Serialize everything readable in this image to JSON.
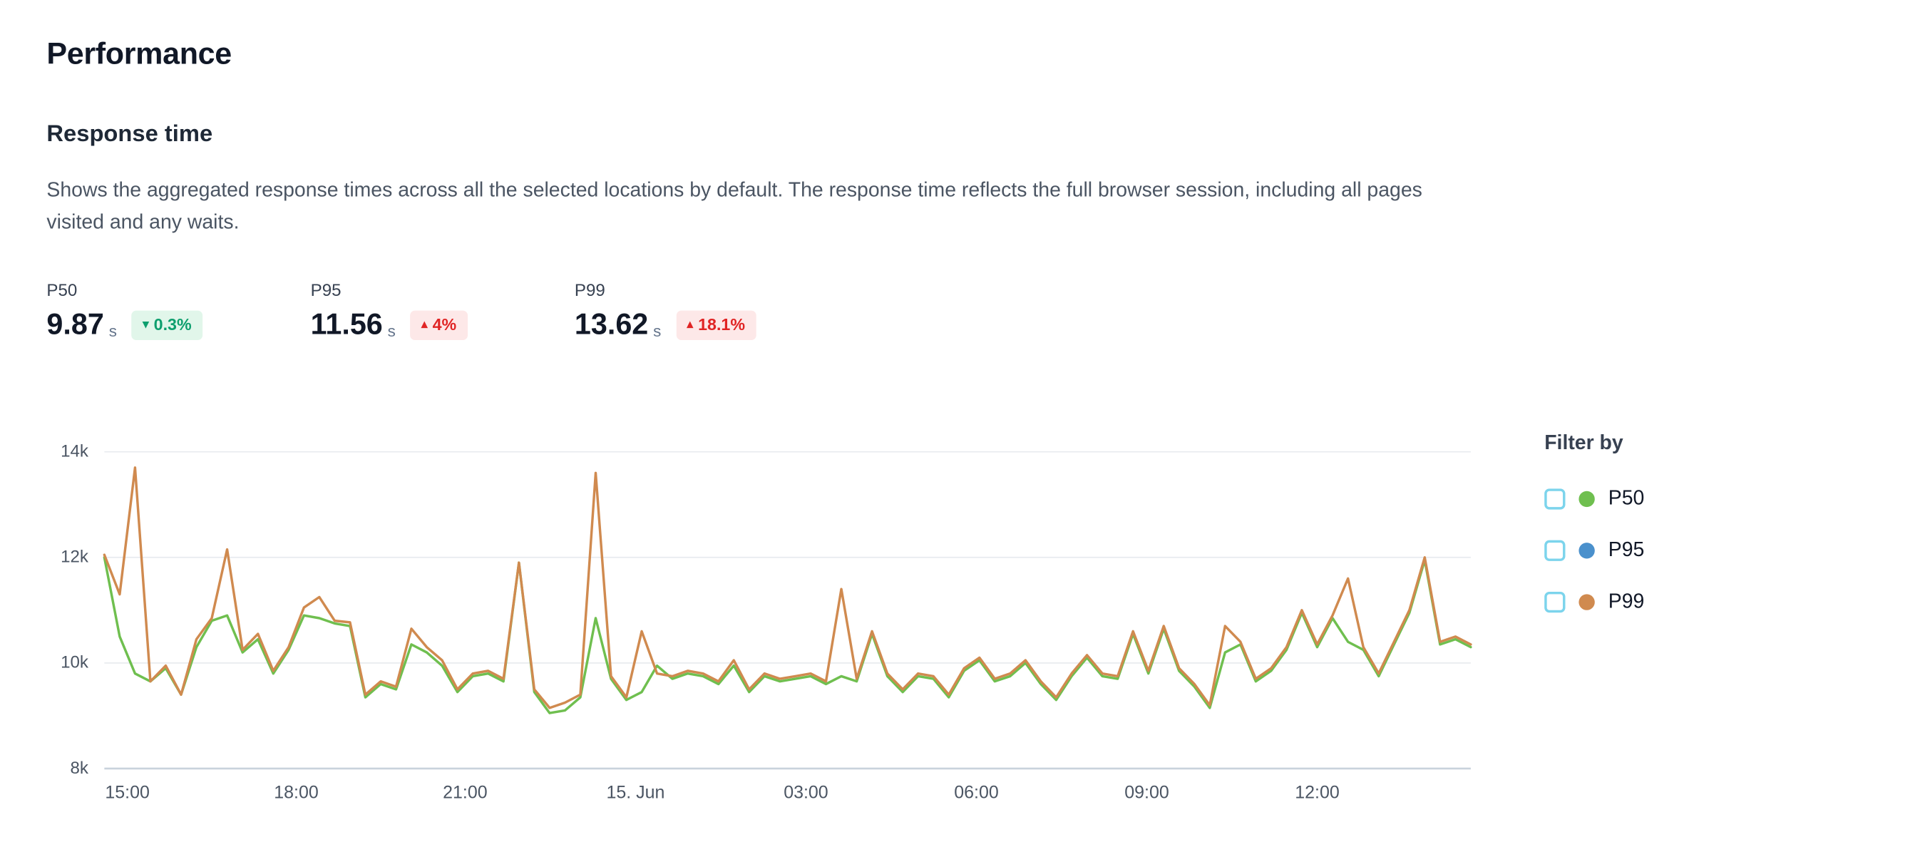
{
  "page": {
    "title": "Performance"
  },
  "section": {
    "title": "Response time",
    "description": "Shows the aggregated response times across all the selected locations by default. The response time reflects the full browser session, including all pages visited and any waits."
  },
  "stats": [
    {
      "label": "P50",
      "value": "9.87",
      "unit": "s",
      "arrow": "▾",
      "delta": "0.3%",
      "tone": "positive"
    },
    {
      "label": "P95",
      "value": "11.56",
      "unit": "s",
      "arrow": "▴",
      "delta": "4%",
      "tone": "negative"
    },
    {
      "label": "P99",
      "value": "13.62",
      "unit": "s",
      "arrow": "▴",
      "delta": "18.1%",
      "tone": "negative"
    }
  ],
  "filter": {
    "title": "Filter by",
    "items": [
      {
        "label": "P50",
        "color": "#6fbf4f",
        "checked": false
      },
      {
        "label": "P95",
        "color": "#4a90cc",
        "checked": false
      },
      {
        "label": "P99",
        "color": "#d08a4f",
        "checked": false
      }
    ]
  },
  "chart_data": {
    "type": "line",
    "title": "Response time",
    "ylim": [
      8000,
      14000
    ],
    "grid": "horizontal",
    "legend_position": "right",
    "y_ticks": [
      {
        "value": 14000,
        "label": "14k"
      },
      {
        "value": 12000,
        "label": "12k"
      },
      {
        "value": 10000,
        "label": "10k"
      },
      {
        "value": 8000,
        "label": "8k"
      }
    ],
    "x_ticks": [
      {
        "index": 1.5,
        "label": "15:00"
      },
      {
        "index": 12.5,
        "label": "18:00"
      },
      {
        "index": 23.5,
        "label": "21:00"
      },
      {
        "index": 34.6,
        "label": "15. Jun"
      },
      {
        "index": 45.7,
        "label": "03:00"
      },
      {
        "index": 56.8,
        "label": "06:00"
      },
      {
        "index": 67.9,
        "label": "09:00"
      },
      {
        "index": 79.0,
        "label": "12:00"
      }
    ],
    "series": [
      {
        "name": "P50",
        "color": "#6fbf4f",
        "visible": true,
        "values": [
          12000,
          10500,
          9800,
          9650,
          9900,
          9400,
          10300,
          10800,
          10900,
          10200,
          10450,
          9800,
          10250,
          10900,
          10850,
          10750,
          10700,
          9350,
          9600,
          9500,
          10350,
          10200,
          9950,
          9450,
          9750,
          9800,
          9650,
          11900,
          9450,
          9050,
          9100,
          9350,
          10850,
          9700,
          9300,
          9450,
          9950,
          9700,
          9800,
          9750,
          9600,
          9950,
          9450,
          9750,
          9650,
          9700,
          9750,
          9600,
          9750,
          9650,
          10550,
          9750,
          9450,
          9750,
          9700,
          9350,
          9850,
          10050,
          9650,
          9750,
          10000,
          9600,
          9300,
          9750,
          10100,
          9750,
          9700,
          10550,
          9800,
          10650,
          9850,
          9550,
          9150,
          10200,
          10350,
          9650,
          9850,
          10250,
          10950,
          10300,
          10850,
          10400,
          10250,
          9750,
          10350,
          10950,
          11950,
          10350,
          10450,
          10300
        ]
      },
      {
        "name": "P95",
        "color": "#4a90cc",
        "visible": false,
        "values": []
      },
      {
        "name": "P99",
        "color": "#d08a4f",
        "visible": true,
        "values": [
          12050,
          11300,
          13700,
          9650,
          9950,
          9400,
          10450,
          10850,
          12150,
          10250,
          10550,
          9850,
          10300,
          11050,
          11250,
          10800,
          10770,
          9400,
          9650,
          9550,
          10650,
          10300,
          10050,
          9500,
          9800,
          9850,
          9700,
          11900,
          9500,
          9150,
          9250,
          9400,
          13600,
          9750,
          9350,
          10600,
          9800,
          9750,
          9850,
          9800,
          9650,
          10050,
          9500,
          9800,
          9700,
          9750,
          9800,
          9650,
          11400,
          9700,
          10600,
          9800,
          9500,
          9800,
          9750,
          9400,
          9900,
          10100,
          9700,
          9800,
          10050,
          9650,
          9350,
          9800,
          10150,
          9800,
          9750,
          10600,
          9850,
          10700,
          9900,
          9600,
          9200,
          10700,
          10400,
          9700,
          9900,
          10300,
          11000,
          10350,
          10900,
          11600,
          10300,
          9800,
          10400,
          11000,
          12000,
          10400,
          10500,
          10350
        ]
      }
    ]
  }
}
